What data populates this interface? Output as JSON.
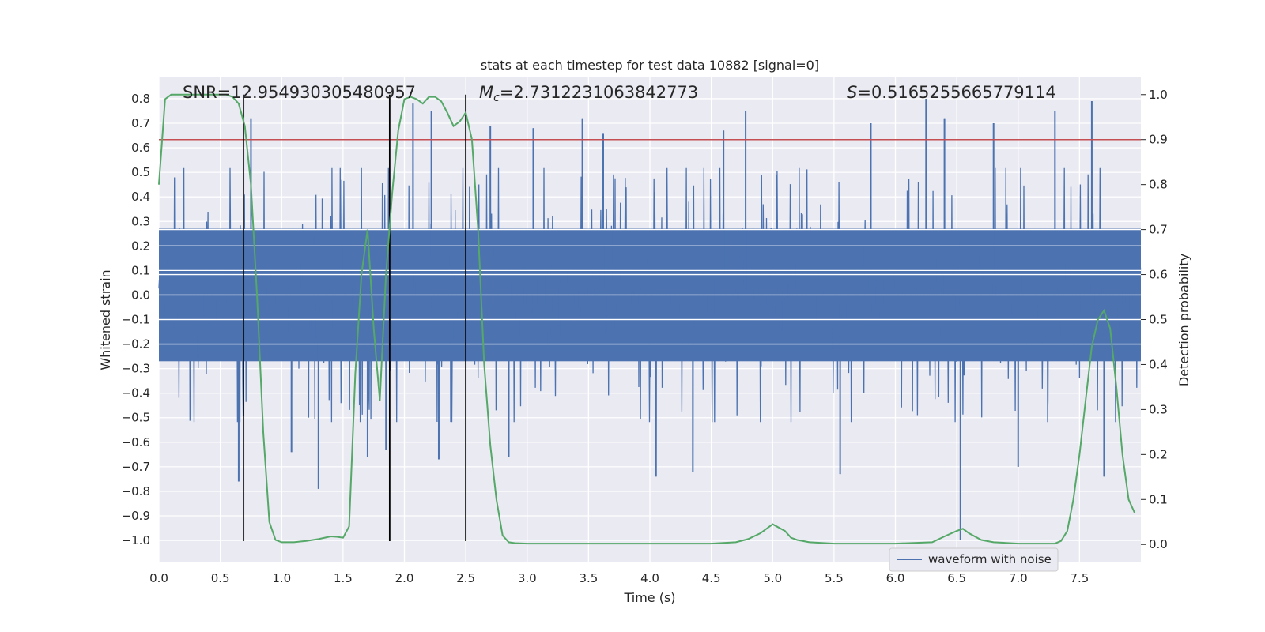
{
  "chart_data": {
    "type": "line",
    "title": "stats at each timestep for test data 10882 [signal=0]",
    "xlabel": "Time (s)",
    "ylabel": "Whitened strain",
    "y2label": "Detection probability",
    "xlim": [
      0.0,
      8.0
    ],
    "ylim": [
      -1.09,
      0.89
    ],
    "y2lim": [
      -0.04,
      1.04
    ],
    "xticks": [
      0.0,
      0.5,
      1.0,
      1.5,
      2.0,
      2.5,
      3.0,
      3.5,
      4.0,
      4.5,
      5.0,
      5.5,
      6.0,
      6.5,
      7.0,
      7.5
    ],
    "xtick_labels": [
      "0.0",
      "0.5",
      "1.0",
      "1.5",
      "2.0",
      "2.5",
      "3.0",
      "3.5",
      "4.0",
      "4.5",
      "5.0",
      "5.5",
      "6.0",
      "6.5",
      "7.0",
      "7.5"
    ],
    "yticks": [
      0.8,
      0.7,
      0.6,
      0.5,
      0.4,
      0.3,
      0.2,
      0.1,
      0.0,
      -0.1,
      -0.2,
      -0.3,
      -0.4,
      -0.5,
      -0.6,
      -0.7,
      -0.8,
      -0.9,
      -1.0
    ],
    "ytick_labels": [
      "0.8",
      "0.7",
      "0.6",
      "0.5",
      "0.4",
      "0.3",
      "0.2",
      "0.1",
      "0.0",
      "−0.1",
      "−0.2",
      "−0.3",
      "−0.4",
      "−0.5",
      "−0.6",
      "−0.7",
      "−0.8",
      "−0.9",
      "−1.0"
    ],
    "y2ticks": [
      1.0,
      0.9,
      0.8,
      0.7,
      0.6,
      0.5,
      0.4,
      0.3,
      0.2,
      0.1,
      0.0
    ],
    "y2tick_labels": [
      "1.0",
      "0.9",
      "0.8",
      "0.7",
      "0.6",
      "0.5",
      "0.4",
      "0.3",
      "0.2",
      "0.1",
      "0.0"
    ],
    "annotations": {
      "snr": "SNR=12.954930305480957",
      "mc_symbol": "M",
      "mc_subscript": "c",
      "mc_value": "=2.7312231063842773",
      "s_symbol": "S",
      "s_value": "=0.5165255665779114"
    },
    "threshold": {
      "value": 0.9,
      "axis": "right",
      "color": "#c44e52"
    },
    "vertical_lines_x": [
      0.69,
      1.88,
      2.5
    ],
    "legend": {
      "label": "waveform with noise",
      "color": "#4c72b0",
      "loc": "lower right"
    },
    "series": [
      {
        "name": "waveform with noise",
        "axis": "left",
        "color": "#4c72b0",
        "kind": "noise band",
        "core_amplitude": 0.27,
        "typical_peak": 0.45,
        "spikes": [
          [
            0.65,
            -0.76
          ],
          [
            0.75,
            0.72
          ],
          [
            1.08,
            -0.64
          ],
          [
            1.3,
            -0.79
          ],
          [
            1.7,
            -0.66
          ],
          [
            1.85,
            -0.63
          ],
          [
            2.07,
            0.78
          ],
          [
            2.22,
            0.75
          ],
          [
            2.28,
            -0.67
          ],
          [
            2.7,
            0.69
          ],
          [
            2.85,
            -0.66
          ],
          [
            3.05,
            0.68
          ],
          [
            3.45,
            0.72
          ],
          [
            3.62,
            0.66
          ],
          [
            4.05,
            -0.74
          ],
          [
            4.35,
            -0.72
          ],
          [
            4.6,
            0.67
          ],
          [
            4.78,
            0.75
          ],
          [
            5.55,
            -0.73
          ],
          [
            5.8,
            0.7
          ],
          [
            6.25,
            0.8
          ],
          [
            6.4,
            0.72
          ],
          [
            6.53,
            -1.0
          ],
          [
            6.8,
            0.7
          ],
          [
            7.0,
            -0.7
          ],
          [
            7.3,
            0.75
          ],
          [
            7.6,
            0.79
          ],
          [
            7.7,
            -0.74
          ]
        ]
      },
      {
        "name": "detection probability",
        "axis": "right",
        "color": "#55a868",
        "x": [
          0.0,
          0.05,
          0.1,
          0.15,
          0.2,
          0.3,
          0.4,
          0.5,
          0.55,
          0.6,
          0.65,
          0.7,
          0.75,
          0.8,
          0.85,
          0.9,
          0.95,
          1.0,
          1.1,
          1.2,
          1.3,
          1.4,
          1.45,
          1.5,
          1.55,
          1.6,
          1.65,
          1.7,
          1.75,
          1.8,
          1.85,
          1.9,
          1.95,
          2.0,
          2.05,
          2.1,
          2.15,
          2.2,
          2.25,
          2.3,
          2.35,
          2.4,
          2.45,
          2.5,
          2.55,
          2.6,
          2.65,
          2.7,
          2.75,
          2.8,
          2.85,
          2.9,
          3.0,
          3.5,
          4.0,
          4.5,
          4.7,
          4.8,
          4.9,
          5.0,
          5.1,
          5.15,
          5.2,
          5.3,
          5.5,
          6.0,
          6.3,
          6.4,
          6.5,
          6.55,
          6.6,
          6.7,
          6.8,
          7.0,
          7.3,
          7.35,
          7.4,
          7.45,
          7.5,
          7.55,
          7.6,
          7.65,
          7.7,
          7.75,
          7.8,
          7.85,
          7.9,
          7.95
        ],
        "y": [
          0.8,
          0.99,
          1.0,
          1.0,
          1.0,
          1.0,
          1.0,
          1.0,
          1.0,
          0.995,
          0.98,
          0.93,
          0.8,
          0.55,
          0.25,
          0.05,
          0.01,
          0.005,
          0.005,
          0.008,
          0.012,
          0.018,
          0.017,
          0.015,
          0.04,
          0.38,
          0.6,
          0.7,
          0.48,
          0.32,
          0.6,
          0.78,
          0.92,
          0.99,
          0.995,
          0.99,
          0.98,
          0.995,
          0.995,
          0.985,
          0.96,
          0.93,
          0.94,
          0.96,
          0.9,
          0.7,
          0.4,
          0.22,
          0.1,
          0.02,
          0.005,
          0.003,
          0.002,
          0.002,
          0.002,
          0.002,
          0.005,
          0.012,
          0.025,
          0.045,
          0.03,
          0.015,
          0.01,
          0.005,
          0.002,
          0.002,
          0.005,
          0.018,
          0.03,
          0.035,
          0.025,
          0.01,
          0.005,
          0.002,
          0.002,
          0.008,
          0.03,
          0.1,
          0.2,
          0.32,
          0.44,
          0.5,
          0.52,
          0.48,
          0.35,
          0.2,
          0.1,
          0.07
        ]
      }
    ]
  }
}
